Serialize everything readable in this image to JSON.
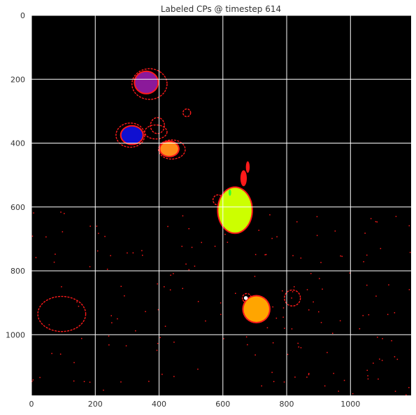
{
  "chart_data": {
    "type": "heatmap",
    "title": "Labeled CPs @ timestep 614",
    "xlabel": "",
    "ylabel": "",
    "xlim": [
      0,
      1190
    ],
    "ylim": [
      1190,
      0
    ],
    "grid": true,
    "background_color": "#000000",
    "grid_color": "#ffffff",
    "x_ticks": [
      0,
      200,
      400,
      600,
      800,
      1000
    ],
    "y_ticks": [
      0,
      200,
      400,
      600,
      800,
      1000
    ],
    "x_tick_labels": [
      "0",
      "200",
      "400",
      "600",
      "800",
      "1000"
    ],
    "y_tick_labels": [
      "0",
      "200",
      "400",
      "600",
      "800",
      "1000"
    ],
    "regions": [
      {
        "label": "purple",
        "color": "#8b1a9a",
        "outline": "#ff1a1a",
        "cx": 360,
        "cy": 210,
        "rx": 35,
        "ry": 33
      },
      {
        "label": "blue",
        "color": "#1010d0",
        "outline": "#ff1a1a",
        "cx": 315,
        "cy": 375,
        "rx": 33,
        "ry": 27
      },
      {
        "label": "orange-small",
        "color": "#ff8c1a",
        "outline": "#ff1a1a",
        "cx": 432,
        "cy": 418,
        "rx": 28,
        "ry": 22
      },
      {
        "label": "yellow-green",
        "color": "#ccff00",
        "outline": "#ff1a1a",
        "cx": 638,
        "cy": 610,
        "rx": 52,
        "ry": 70
      },
      {
        "label": "orange-large",
        "color": "#ffa500",
        "outline": "#ff1a1a",
        "cx": 705,
        "cy": 920,
        "rx": 40,
        "ry": 40
      }
    ],
    "rings": [
      {
        "cx": 370,
        "cy": 215,
        "rx": 55,
        "ry": 48
      },
      {
        "cx": 310,
        "cy": 375,
        "rx": 45,
        "ry": 38
      },
      {
        "cx": 395,
        "cy": 345,
        "rx": 22,
        "ry": 25
      },
      {
        "cx": 390,
        "cy": 365,
        "rx": 35,
        "ry": 22
      },
      {
        "cx": 487,
        "cy": 305,
        "rx": 12,
        "ry": 12
      },
      {
        "cx": 440,
        "cy": 420,
        "rx": 42,
        "ry": 30
      },
      {
        "cx": 585,
        "cy": 578,
        "rx": 16,
        "ry": 16
      },
      {
        "cx": 675,
        "cy": 885,
        "rx": 14,
        "ry": 14
      },
      {
        "cx": 818,
        "cy": 885,
        "rx": 25,
        "ry": 25
      },
      {
        "cx": 95,
        "cy": 935,
        "rx": 75,
        "ry": 55
      }
    ],
    "blobs": [
      {
        "cx": 665,
        "cy": 510,
        "rx": 10,
        "ry": 25
      },
      {
        "cx": 678,
        "cy": 475,
        "rx": 6,
        "ry": 18
      },
      {
        "cx": 622,
        "cy": 555,
        "rx": 10,
        "ry": 12
      }
    ]
  }
}
